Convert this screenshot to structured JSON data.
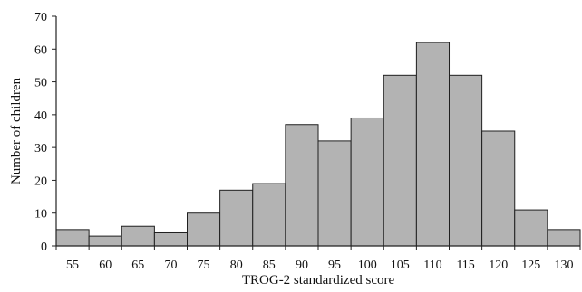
{
  "chart_data": {
    "type": "bar",
    "xlabel": "TROG-2 standardized score",
    "ylabel": "Number of children",
    "categories": [
      "55",
      "60",
      "65",
      "70",
      "75",
      "80",
      "85",
      "90",
      "95",
      "100",
      "105",
      "110",
      "115",
      "120",
      "125",
      "130"
    ],
    "values": [
      5,
      3,
      6,
      4,
      10,
      17,
      19,
      37,
      32,
      39,
      52,
      62,
      52,
      35,
      11,
      5
    ],
    "ylim": [
      0,
      70
    ],
    "yticks": [
      0,
      10,
      20,
      30,
      40,
      50,
      60,
      70
    ],
    "grid": false,
    "colors": {
      "bar_fill": "#b3b3b3",
      "bar_stroke": "#1f1f1f",
      "axis": "#222222",
      "text": "#111111"
    }
  }
}
